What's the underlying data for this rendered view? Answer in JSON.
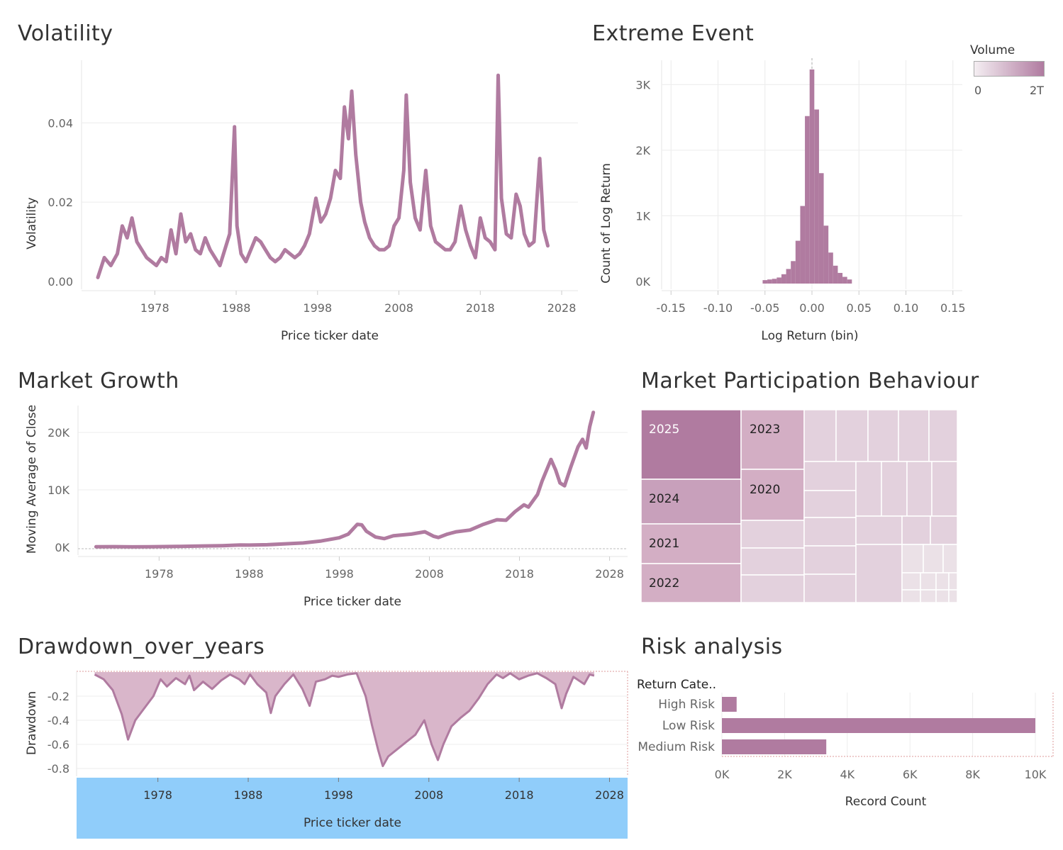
{
  "colors": {
    "mark": "#b07ba0",
    "mark_light": "#d3aec4",
    "drawdown_fill": "#d9b6ca",
    "axis_band": "#90cdfa",
    "grid": "#ececec"
  },
  "chart_data": [
    {
      "id": "volatility",
      "type": "line",
      "title": "Volatility",
      "xlabel": "Price ticker date",
      "ylabel": "Volatility",
      "x_ticks": [
        "1978",
        "1988",
        "1998",
        "2008",
        "2018",
        "2028"
      ],
      "y_ticks": [
        "0.00",
        "0.02",
        "0.04"
      ],
      "xlim": [
        1969,
        2030
      ],
      "ylim": [
        0,
        0.054
      ],
      "series": [
        {
          "points": [
            [
              1971.0,
              0.001
            ],
            [
              1971.8,
              0.006
            ],
            [
              1972.6,
              0.004
            ],
            [
              1973.4,
              0.007
            ],
            [
              1974.0,
              0.014
            ],
            [
              1974.6,
              0.011
            ],
            [
              1975.2,
              0.016
            ],
            [
              1975.8,
              0.01
            ],
            [
              1976.4,
              0.008
            ],
            [
              1977.0,
              0.006
            ],
            [
              1977.6,
              0.005
            ],
            [
              1978.2,
              0.004
            ],
            [
              1978.8,
              0.006
            ],
            [
              1979.4,
              0.005
            ],
            [
              1980.0,
              0.013
            ],
            [
              1980.6,
              0.007
            ],
            [
              1981.2,
              0.017
            ],
            [
              1981.8,
              0.01
            ],
            [
              1982.4,
              0.012
            ],
            [
              1983.0,
              0.008
            ],
            [
              1983.6,
              0.007
            ],
            [
              1984.2,
              0.011
            ],
            [
              1984.8,
              0.008
            ],
            [
              1985.4,
              0.006
            ],
            [
              1986.0,
              0.004
            ],
            [
              1986.6,
              0.008
            ],
            [
              1987.2,
              0.012
            ],
            [
              1987.8,
              0.039
            ],
            [
              1988.1,
              0.014
            ],
            [
              1988.6,
              0.007
            ],
            [
              1989.2,
              0.005
            ],
            [
              1989.8,
              0.008
            ],
            [
              1990.4,
              0.011
            ],
            [
              1991.0,
              0.01
            ],
            [
              1991.6,
              0.008
            ],
            [
              1992.2,
              0.006
            ],
            [
              1992.8,
              0.005
            ],
            [
              1993.4,
              0.006
            ],
            [
              1994.0,
              0.008
            ],
            [
              1994.6,
              0.007
            ],
            [
              1995.2,
              0.006
            ],
            [
              1995.8,
              0.007
            ],
            [
              1996.4,
              0.009
            ],
            [
              1997.0,
              0.012
            ],
            [
              1997.8,
              0.021
            ],
            [
              1998.4,
              0.015
            ],
            [
              1999.0,
              0.017
            ],
            [
              1999.6,
              0.021
            ],
            [
              2000.2,
              0.028
            ],
            [
              2000.8,
              0.026
            ],
            [
              2001.3,
              0.044
            ],
            [
              2001.8,
              0.036
            ],
            [
              2002.2,
              0.048
            ],
            [
              2002.7,
              0.032
            ],
            [
              2003.3,
              0.02
            ],
            [
              2003.8,
              0.015
            ],
            [
              2004.4,
              0.011
            ],
            [
              2005.0,
              0.009
            ],
            [
              2005.6,
              0.008
            ],
            [
              2006.2,
              0.008
            ],
            [
              2006.8,
              0.009
            ],
            [
              2007.4,
              0.014
            ],
            [
              2008.0,
              0.016
            ],
            [
              2008.6,
              0.028
            ],
            [
              2008.9,
              0.047
            ],
            [
              2009.4,
              0.025
            ],
            [
              2010.0,
              0.016
            ],
            [
              2010.6,
              0.013
            ],
            [
              2011.3,
              0.028
            ],
            [
              2011.9,
              0.014
            ],
            [
              2012.5,
              0.01
            ],
            [
              2013.1,
              0.009
            ],
            [
              2013.7,
              0.008
            ],
            [
              2014.3,
              0.008
            ],
            [
              2014.9,
              0.01
            ],
            [
              2015.6,
              0.019
            ],
            [
              2016.2,
              0.013
            ],
            [
              2016.8,
              0.009
            ],
            [
              2017.4,
              0.006
            ],
            [
              2018.0,
              0.016
            ],
            [
              2018.6,
              0.011
            ],
            [
              2019.2,
              0.01
            ],
            [
              2019.8,
              0.008
            ],
            [
              2020.2,
              0.052
            ],
            [
              2020.6,
              0.021
            ],
            [
              2021.2,
              0.012
            ],
            [
              2021.8,
              0.011
            ],
            [
              2022.4,
              0.022
            ],
            [
              2022.9,
              0.019
            ],
            [
              2023.4,
              0.012
            ],
            [
              2024.0,
              0.009
            ],
            [
              2024.6,
              0.01
            ],
            [
              2025.3,
              0.031
            ],
            [
              2025.8,
              0.013
            ],
            [
              2026.3,
              0.009
            ]
          ]
        }
      ]
    },
    {
      "id": "extreme_event",
      "type": "bar",
      "title": "Extreme Event",
      "xlabel": "Log Return (bin)",
      "ylabel": "Count of Log Return",
      "x_ticks": [
        "-0.15",
        "-0.10",
        "-0.05",
        "0.00",
        "0.05",
        "0.10",
        "0.15"
      ],
      "y_ticks": [
        "0K",
        "1K",
        "2K",
        "3K"
      ],
      "xlim": [
        -0.16,
        0.16
      ],
      "ylim": [
        0,
        3300
      ],
      "bin_width": 0.005,
      "bins": [
        [
          -0.05,
          20
        ],
        [
          -0.045,
          30
        ],
        [
          -0.04,
          40
        ],
        [
          -0.035,
          60
        ],
        [
          -0.03,
          110
        ],
        [
          -0.025,
          190
        ],
        [
          -0.02,
          310
        ],
        [
          -0.015,
          620
        ],
        [
          -0.01,
          1150
        ],
        [
          -0.005,
          2520
        ],
        [
          0.0,
          3230
        ],
        [
          0.005,
          2620
        ],
        [
          0.01,
          1650
        ],
        [
          0.015,
          850
        ],
        [
          0.02,
          440
        ],
        [
          0.025,
          240
        ],
        [
          0.03,
          130
        ],
        [
          0.035,
          70
        ],
        [
          0.04,
          30
        ]
      ],
      "legend": {
        "title": "Volume",
        "min_label": "0",
        "max_label": "2T"
      }
    },
    {
      "id": "market_growth",
      "type": "line",
      "title": "Market Growth",
      "xlabel": "Price ticker date",
      "ylabel": "Moving Average of Close",
      "x_ticks": [
        "1978",
        "1988",
        "1998",
        "2008",
        "2018",
        "2028"
      ],
      "y_ticks": [
        "0K",
        "10K",
        "20K"
      ],
      "xlim": [
        1969,
        2030
      ],
      "ylim": [
        -300,
        24500
      ],
      "series": [
        {
          "points": [
            [
              1971.0,
              100
            ],
            [
              1973.0,
              110
            ],
            [
              1975.0,
              80
            ],
            [
              1977.0,
              100
            ],
            [
              1980.0,
              150
            ],
            [
              1983.0,
              240
            ],
            [
              1985.0,
              280
            ],
            [
              1987.0,
              400
            ],
            [
              1988.0,
              380
            ],
            [
              1990.0,
              450
            ],
            [
              1992.0,
              600
            ],
            [
              1994.0,
              750
            ],
            [
              1996.0,
              1100
            ],
            [
              1998.0,
              1650
            ],
            [
              1999.0,
              2300
            ],
            [
              2000.0,
              4000
            ],
            [
              2000.5,
              3900
            ],
            [
              2001.0,
              2800
            ],
            [
              2002.0,
              1800
            ],
            [
              2003.0,
              1500
            ],
            [
              2004.0,
              2000
            ],
            [
              2006.0,
              2300
            ],
            [
              2007.5,
              2700
            ],
            [
              2008.5,
              1900
            ],
            [
              2009.0,
              1700
            ],
            [
              2010.0,
              2300
            ],
            [
              2011.0,
              2700
            ],
            [
              2012.5,
              3000
            ],
            [
              2014.0,
              4000
            ],
            [
              2015.5,
              4800
            ],
            [
              2016.5,
              4700
            ],
            [
              2017.5,
              6200
            ],
            [
              2018.5,
              7400
            ],
            [
              2019.0,
              7000
            ],
            [
              2020.0,
              9200
            ],
            [
              2020.5,
              11500
            ],
            [
              2021.5,
              15300
            ],
            [
              2022.0,
              13500
            ],
            [
              2022.5,
              11200
            ],
            [
              2023.0,
              10700
            ],
            [
              2023.7,
              14000
            ],
            [
              2024.5,
              17500
            ],
            [
              2025.0,
              18800
            ],
            [
              2025.4,
              17300
            ],
            [
              2025.8,
              21000
            ],
            [
              2026.2,
              23500
            ]
          ]
        }
      ]
    },
    {
      "id": "market_participation",
      "type": "treemap",
      "title": "Market Participation Behaviour",
      "labels": [
        "2025",
        "2024",
        "2021",
        "2022",
        "2023",
        "2020"
      ]
    },
    {
      "id": "drawdown",
      "type": "area",
      "title": "Drawdown_over_years",
      "xlabel": "Price ticker date",
      "ylabel": "Drawdown",
      "x_ticks": [
        "1978",
        "1988",
        "1998",
        "2008",
        "2018",
        "2028"
      ],
      "y_ticks": [
        "-0.2",
        "-0.4",
        "-0.6",
        "-0.8"
      ],
      "xlim": [
        1969,
        2030
      ],
      "ylim": [
        -0.9,
        0
      ],
      "series": [
        {
          "points": [
            [
              1971.0,
              -0.02
            ],
            [
              1972.0,
              -0.06
            ],
            [
              1973.0,
              -0.15
            ],
            [
              1974.0,
              -0.35
            ],
            [
              1974.7,
              -0.56
            ],
            [
              1975.5,
              -0.4
            ],
            [
              1976.5,
              -0.3
            ],
            [
              1977.5,
              -0.2
            ],
            [
              1978.3,
              -0.06
            ],
            [
              1979.0,
              -0.12
            ],
            [
              1980.0,
              -0.05
            ],
            [
              1981.0,
              -0.1
            ],
            [
              1981.5,
              -0.03
            ],
            [
              1982.0,
              -0.15
            ],
            [
              1983.0,
              -0.08
            ],
            [
              1984.0,
              -0.14
            ],
            [
              1985.0,
              -0.07
            ],
            [
              1986.0,
              -0.02
            ],
            [
              1987.0,
              -0.06
            ],
            [
              1987.6,
              -0.1
            ],
            [
              1988.2,
              -0.02
            ],
            [
              1989.0,
              -0.1
            ],
            [
              1990.0,
              -0.17
            ],
            [
              1990.5,
              -0.34
            ],
            [
              1991.0,
              -0.2
            ],
            [
              1992.0,
              -0.1
            ],
            [
              1993.0,
              -0.02
            ],
            [
              1994.0,
              -0.14
            ],
            [
              1994.8,
              -0.28
            ],
            [
              1995.5,
              -0.08
            ],
            [
              1996.5,
              -0.06
            ],
            [
              1997.3,
              -0.03
            ],
            [
              1998.0,
              -0.04
            ],
            [
              1999.0,
              -0.02
            ],
            [
              2000.0,
              -0.01
            ],
            [
              2001.0,
              -0.2
            ],
            [
              2001.7,
              -0.44
            ],
            [
              2002.4,
              -0.65
            ],
            [
              2002.9,
              -0.78
            ],
            [
              2003.5,
              -0.7
            ],
            [
              2004.5,
              -0.64
            ],
            [
              2005.5,
              -0.58
            ],
            [
              2006.5,
              -0.52
            ],
            [
              2007.5,
              -0.4
            ],
            [
              2008.3,
              -0.6
            ],
            [
              2009.0,
              -0.73
            ],
            [
              2009.6,
              -0.6
            ],
            [
              2010.5,
              -0.45
            ],
            [
              2011.5,
              -0.38
            ],
            [
              2012.5,
              -0.32
            ],
            [
              2013.5,
              -0.22
            ],
            [
              2014.5,
              -0.1
            ],
            [
              2015.5,
              -0.02
            ],
            [
              2016.2,
              -0.05
            ],
            [
              2017.0,
              -0.01
            ],
            [
              2018.0,
              -0.06
            ],
            [
              2019.0,
              -0.03
            ],
            [
              2020.0,
              -0.01
            ],
            [
              2021.0,
              -0.05
            ],
            [
              2022.0,
              -0.1
            ],
            [
              2022.7,
              -0.3
            ],
            [
              2023.2,
              -0.18
            ],
            [
              2024.0,
              -0.04
            ],
            [
              2025.2,
              -0.1
            ],
            [
              2025.8,
              -0.02
            ],
            [
              2026.3,
              -0.03
            ]
          ]
        }
      ]
    },
    {
      "id": "risk_analysis",
      "type": "bar",
      "orientation": "horizontal",
      "title": "Risk analysis",
      "header": "Return Cate..",
      "xlabel": "Record Count",
      "x_ticks": [
        "0K",
        "2K",
        "4K",
        "6K",
        "8K",
        "10K"
      ],
      "xlim": [
        0,
        10200
      ],
      "categories": [
        "High Risk",
        "Low Risk",
        "Medium Risk"
      ],
      "values": [
        470,
        10000,
        3330
      ]
    }
  ]
}
